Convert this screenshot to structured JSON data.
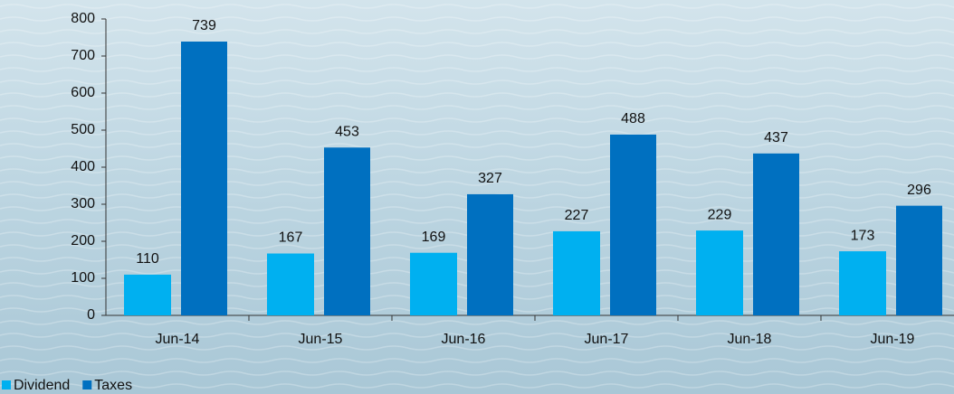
{
  "chart_data": {
    "type": "bar",
    "categories": [
      "Jun-14",
      "Jun-15",
      "Jun-16",
      "Jun-17",
      "Jun-18",
      "Jun-19"
    ],
    "series": [
      {
        "name": "Dividend",
        "color": "#00b0f0",
        "values": [
          110,
          167,
          169,
          227,
          229,
          173
        ]
      },
      {
        "name": "Taxes",
        "color": "#0070c0",
        "values": [
          739,
          453,
          327,
          488,
          437,
          296
        ]
      }
    ],
    "ylim": [
      0,
      800
    ],
    "yticks": [
      0,
      100,
      200,
      300,
      400,
      500,
      600,
      700,
      800
    ],
    "legend": "bottom-left"
  }
}
